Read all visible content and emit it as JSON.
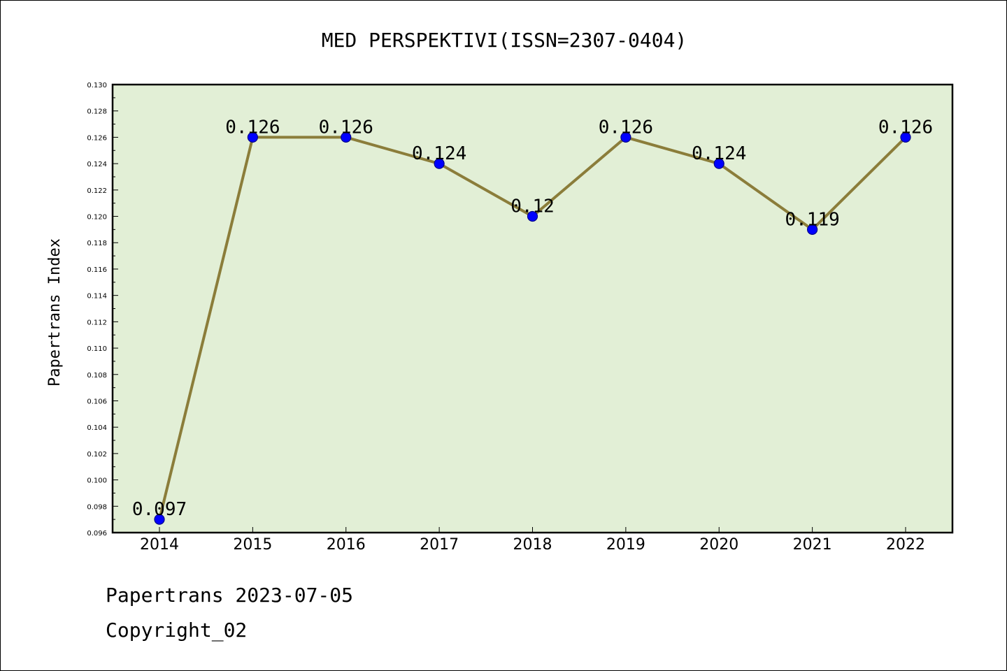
{
  "chart_data": {
    "type": "line",
    "title": "MED PERSPEKTIVI(ISSN=2307-0404)",
    "xlabel": "",
    "ylabel": "Papertrans Index",
    "categories": [
      "2014",
      "2015",
      "2016",
      "2017",
      "2018",
      "2019",
      "2020",
      "2021",
      "2022"
    ],
    "series": [
      {
        "values": [
          0.097,
          0.126,
          0.126,
          0.124,
          0.12,
          0.126,
          0.124,
          0.119,
          0.126
        ],
        "labels": [
          "0.097",
          "0.126",
          "0.126",
          "0.124",
          "0.12",
          "0.126",
          "0.124",
          "0.119",
          "0.126"
        ]
      }
    ],
    "ylim": [
      0.096,
      0.13
    ],
    "yticks": [
      "0.096",
      "0.098",
      "0.100",
      "0.102",
      "0.104",
      "0.106",
      "0.108",
      "0.110",
      "0.112",
      "0.114",
      "0.116",
      "0.118",
      "0.120",
      "0.122",
      "0.124",
      "0.126",
      "0.128",
      "0.130"
    ],
    "grid": false,
    "colors": {
      "plot_background": "#e2efd6",
      "line": "#8b7d3a",
      "marker_fill": "#0000ff",
      "marker_stroke": "#00008b"
    }
  },
  "footer": {
    "line1": "Papertrans 2023-07-05",
    "line2": "Copyright_02"
  }
}
